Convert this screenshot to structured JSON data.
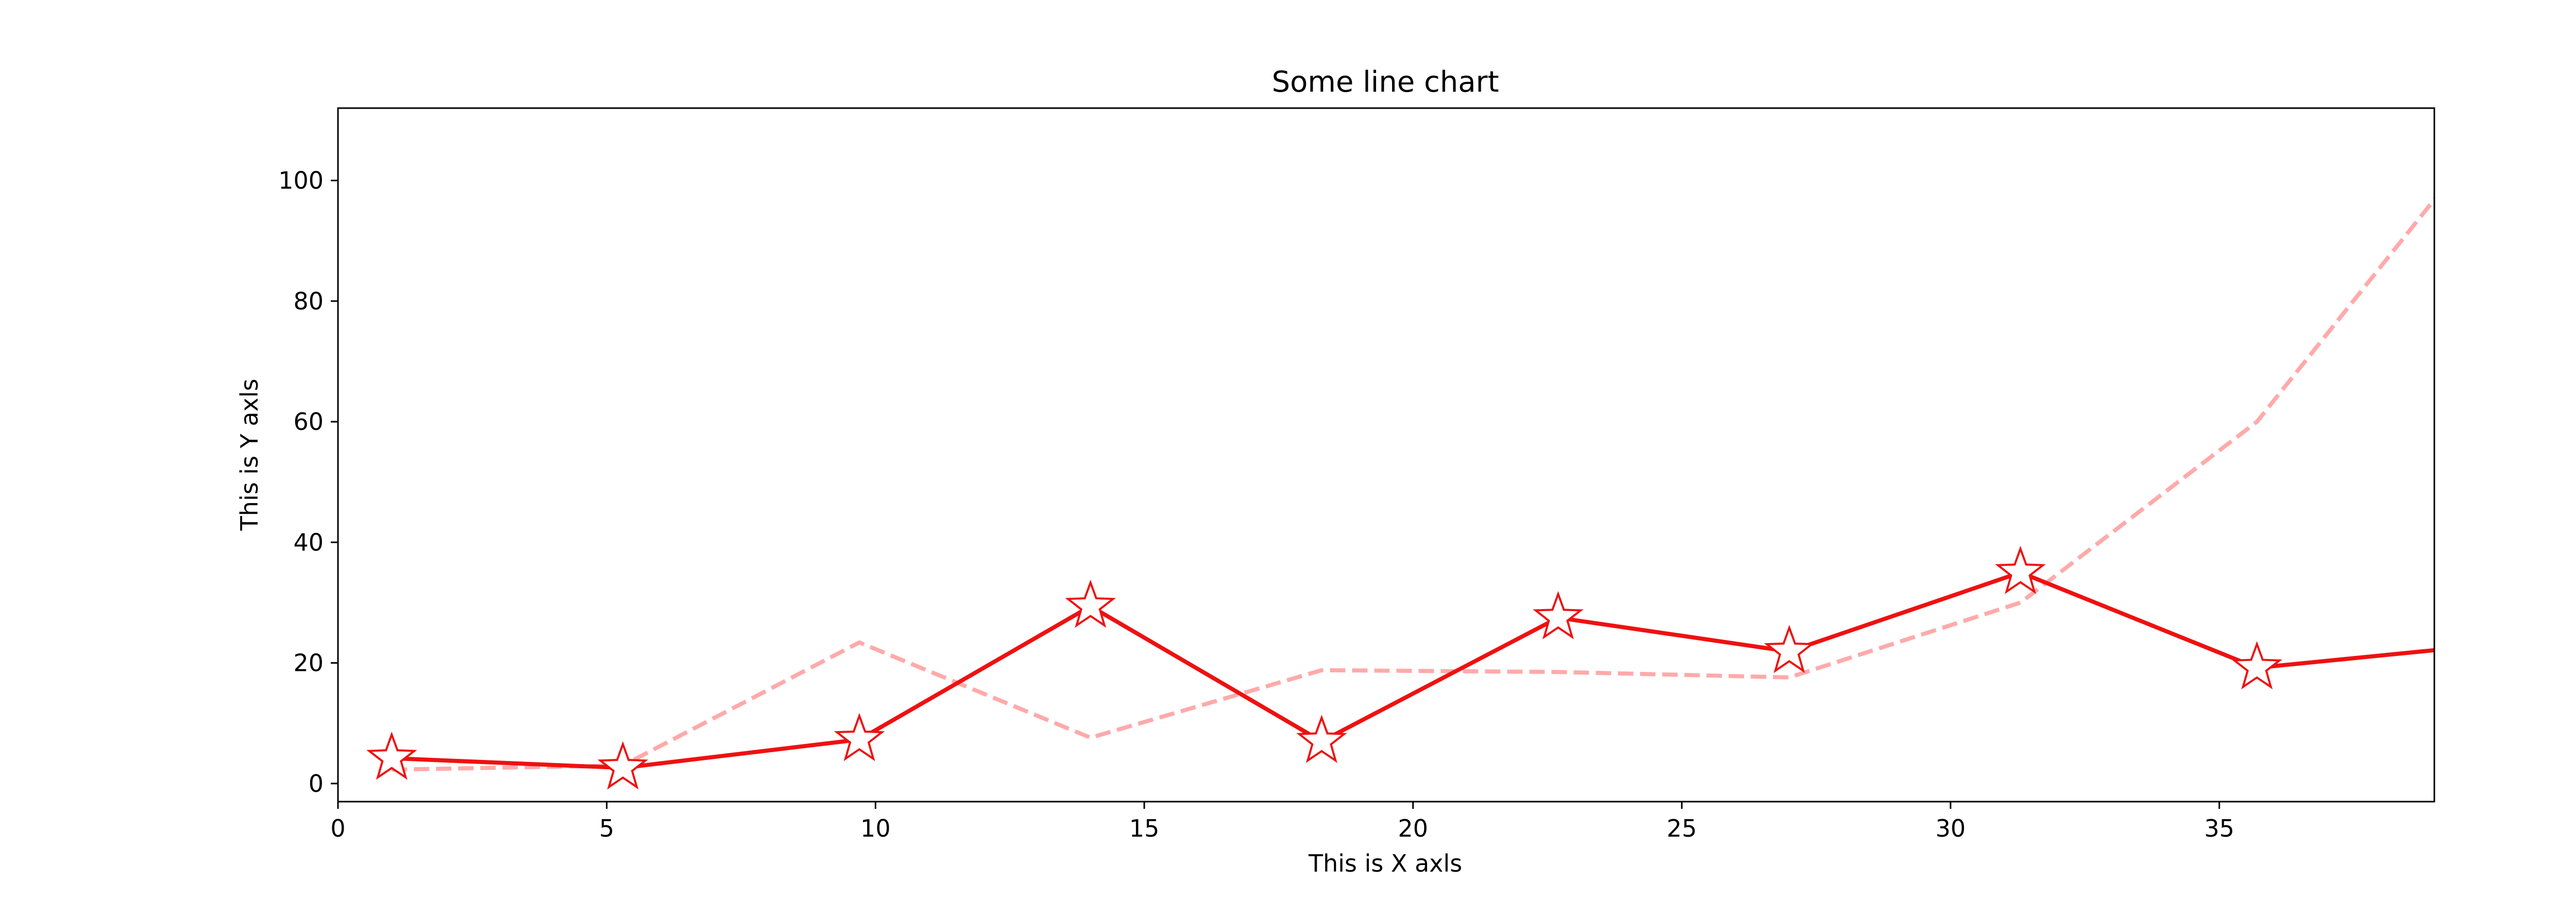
{
  "chart_data": {
    "type": "line",
    "title": "Some line chart",
    "xlabel": "This is X axls",
    "ylabel": "This is Y axls",
    "xlim": [
      0,
      39
    ],
    "ylim": [
      -3,
      112
    ],
    "xticks": [
      0,
      5,
      10,
      15,
      20,
      25,
      30,
      35
    ],
    "yticks": [
      0,
      20,
      40,
      60,
      80,
      100
    ],
    "xtick_labels": [
      "0",
      "5",
      "10",
      "15",
      "20",
      "25",
      "30",
      "35"
    ],
    "ytick_labels": [
      "0",
      "20",
      "40",
      "60",
      "80",
      "100"
    ],
    "grid": false,
    "legend": false,
    "series": [
      {
        "style": "solid",
        "marker": "star",
        "color": "#ee1111",
        "x": [
          1.0,
          5.3,
          9.7,
          14.0,
          18.3,
          22.7,
          27.0,
          31.3,
          35.7,
          40.0
        ],
        "y": [
          4.2,
          2.6,
          7.3,
          29.4,
          7.0,
          27.5,
          21.9,
          35.0,
          19.2,
          23.0
        ]
      },
      {
        "style": "dashed",
        "marker": "none",
        "color": "#ffaaaa",
        "x": [
          1.0,
          5.3,
          9.7,
          14.0,
          18.3,
          22.7,
          27.0,
          31.3,
          35.7,
          40.0
        ],
        "y": [
          2.3,
          3.0,
          23.4,
          7.6,
          18.8,
          18.5,
          17.6,
          30.0,
          60.0,
          108.0
        ]
      }
    ]
  }
}
